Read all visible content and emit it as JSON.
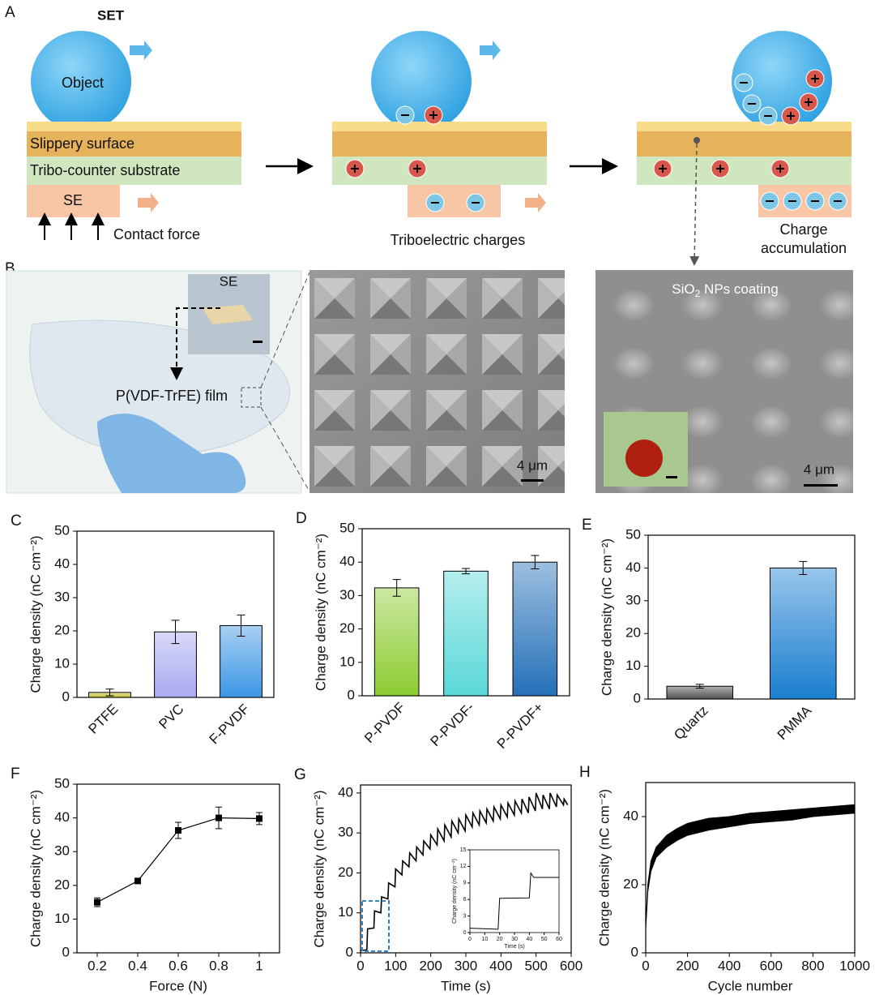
{
  "diagram": {
    "label": "A",
    "title": "SET",
    "object": "Object",
    "slippery": "Slippery surface",
    "substrate": "Tribo-counter substrate",
    "se": "SE",
    "force": "Contact force",
    "triboelectric": "Triboelectric charges",
    "accumulation": [
      "Charge",
      "accumulation"
    ]
  },
  "photos": {
    "label": "B",
    "se": "SE",
    "film": "P(VDF-TrFE) film",
    "scale_1": "4 μm",
    "coating": [
      "SiO",
      "2",
      " NPs coating"
    ],
    "scale_2": "4 μm"
  },
  "chart_data": [
    {
      "type": "bar",
      "label": "C",
      "y_label": "Charge density (nC cm⁻²)",
      "categories": [
        "PTFE",
        "PVC",
        "F-PVDF"
      ],
      "values": [
        1.5,
        19.7,
        21.6
      ],
      "errors": [
        1,
        3.5,
        3.2
      ],
      "colors": [
        "#c2c23a",
        "#a9a9f0",
        "#3c96e4"
      ],
      "ylim": [
        0,
        50
      ],
      "yticks": [
        0,
        10,
        20,
        30,
        40,
        50
      ]
    },
    {
      "type": "bar",
      "label": "D",
      "y_label": "Charge density (nC cm⁻²)",
      "categories": [
        "P-PVDF",
        "P-PVDF-",
        "P-PVDF+"
      ],
      "values": [
        32.3,
        37.3,
        40
      ],
      "errors": [
        2.5,
        0.8,
        2
      ],
      "colors": [
        "#8ccc30",
        "#5ad8d8",
        "#2470b8"
      ],
      "ylim": [
        0,
        50
      ],
      "yticks": [
        0,
        10,
        20,
        30,
        40,
        50
      ]
    },
    {
      "type": "bar",
      "label": "E",
      "y_label": "Charge density (nC cm⁻²)",
      "categories": [
        "Quartz",
        "PMMA"
      ],
      "values": [
        3.9,
        40
      ],
      "errors": [
        0.6,
        2
      ],
      "colors": [
        "#505050",
        "#1a7ed0"
      ],
      "ylim": [
        0,
        50
      ],
      "yticks": [
        0,
        10,
        20,
        30,
        40,
        50
      ]
    },
    {
      "type": "line",
      "label": "F",
      "x_label": "Force (N)",
      "y_label": "Charge density (nC cm⁻²)",
      "x": [
        0.2,
        0.4,
        0.6,
        0.8,
        1
      ],
      "values": [
        15,
        21.3,
        36.3,
        40,
        39.8
      ],
      "errors": [
        1.3,
        0.6,
        2.4,
        3.2,
        1.8
      ],
      "color": "#000000",
      "markers": true,
      "xlim": [
        0.1,
        1.1
      ],
      "xticks": [
        0.2,
        0.4,
        0.6,
        0.8,
        1
      ],
      "ylim": [
        0,
        50
      ],
      "yticks": [
        0,
        10,
        20,
        30,
        40,
        50
      ]
    },
    {
      "type": "line",
      "label": "G",
      "x_label": "Time (s)",
      "y_label": "Charge density (nC cm⁻²)",
      "x": [
        0,
        18,
        20,
        38,
        40,
        58,
        60,
        78,
        80,
        98,
        100,
        118,
        120,
        138,
        140,
        158,
        160,
        178,
        180,
        198,
        200,
        218,
        220,
        238,
        240,
        258,
        260,
        278,
        280,
        298,
        300,
        318,
        320,
        338,
        340,
        358,
        360,
        378,
        380,
        398,
        400,
        418,
        420,
        438,
        440,
        458,
        460,
        478,
        480,
        498,
        500,
        518,
        520,
        538,
        540,
        558,
        560,
        578,
        580,
        590
      ],
      "values": [
        0.5,
        0.8,
        6,
        6.2,
        10.5,
        10,
        14,
        13.5,
        17.5,
        16.5,
        21,
        19.5,
        23,
        21.5,
        25,
        23,
        26.5,
        24.5,
        28,
        26,
        29.5,
        27,
        31,
        28,
        32,
        29,
        33,
        30,
        33.5,
        30.5,
        34.5,
        31.5,
        35,
        32,
        35.5,
        32.5,
        36,
        33,
        36.5,
        33.5,
        37,
        34,
        37.5,
        34.5,
        38,
        35,
        38.5,
        35,
        39,
        35.5,
        40,
        36,
        39.5,
        36,
        40,
        36.5,
        39.5,
        37,
        38.5,
        37
      ],
      "color": "#000000",
      "xlim": [
        0,
        600
      ],
      "xticks": [
        0,
        100,
        200,
        300,
        400,
        500,
        600
      ],
      "ylim": [
        0,
        42
      ],
      "yticks": [
        0,
        10,
        20,
        30,
        40
      ],
      "inset": {
        "x_label": "Time (s)",
        "y_label": "Charge density (nC cm⁻²)",
        "x": [
          0,
          19,
          20,
          40,
          41,
          43,
          60
        ],
        "values": [
          0.8,
          0.6,
          6.2,
          6.3,
          10.8,
          10,
          10
        ],
        "xlim": [
          0,
          60
        ],
        "xticks": [
          0,
          10,
          20,
          30,
          40,
          50,
          60
        ],
        "ylim": [
          0,
          15
        ],
        "yticks": [
          0,
          3,
          6,
          9,
          12,
          15
        ]
      }
    },
    {
      "type": "band",
      "label": "H",
      "x_label": "Cycle number",
      "y_label": "Charge density (nC cm⁻²)",
      "x": [
        0,
        10,
        25,
        50,
        100,
        150,
        200,
        300,
        400,
        500,
        600,
        700,
        800,
        900,
        1000
      ],
      "low": [
        7,
        18,
        24,
        28,
        31,
        33,
        34.5,
        36,
        37,
        38,
        38.5,
        39,
        40,
        40.5,
        41
      ],
      "high": [
        8,
        20,
        27,
        31,
        34.5,
        36.5,
        38,
        39.5,
        40,
        41,
        41.5,
        42,
        42.5,
        43,
        43.5
      ],
      "color": "#000000",
      "xlim": [
        0,
        1000
      ],
      "xticks": [
        0,
        200,
        400,
        600,
        800,
        1000
      ],
      "ylim": [
        0,
        50
      ],
      "yticks": [
        0,
        20,
        40
      ]
    }
  ]
}
